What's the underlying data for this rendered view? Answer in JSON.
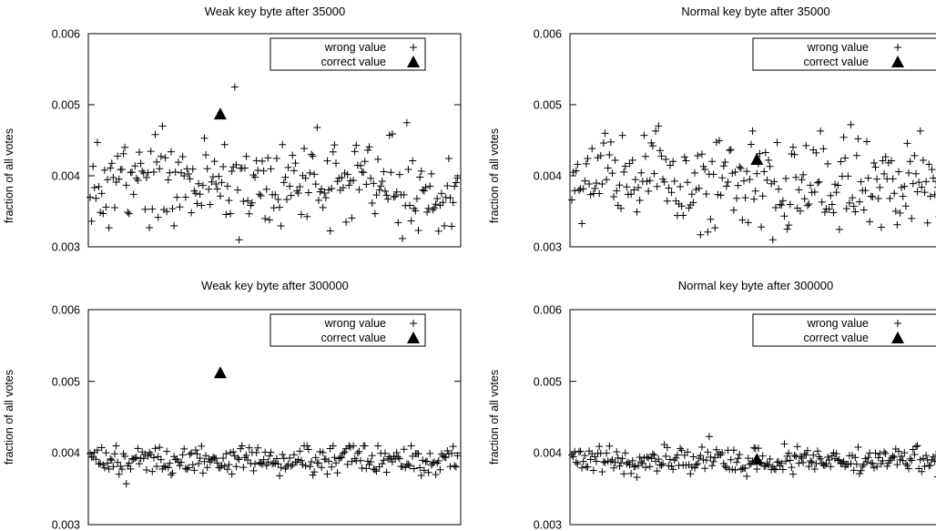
{
  "chart_data": [
    {
      "type": "scatter",
      "title": "Weak key byte after 35000",
      "xlabel": "",
      "ylabel": "fraction of all votes",
      "ylim": [
        0.003,
        0.006
      ],
      "yticks": [
        "0.003",
        "0.004",
        "0.005",
        "0.006"
      ],
      "xlim": [
        0,
        255
      ],
      "legend": {
        "position": "top-right",
        "entries": [
          "wrong value",
          "correct value"
        ]
      },
      "series": [
        {
          "name": "wrong value",
          "marker": "plus",
          "stats": {
            "n": 255,
            "mean": 0.00388,
            "sd": 0.00032,
            "min": 0.0031,
            "max": 0.00525,
            "seed": 1
          },
          "outliers": [
            [
              100,
              0.00525
            ],
            [
              157,
              0.00468
            ],
            [
              50,
              0.0047
            ]
          ]
        },
        {
          "name": "correct value",
          "marker": "triangle",
          "points": [
            [
              90,
              0.00487
            ]
          ]
        }
      ]
    },
    {
      "type": "scatter",
      "title": "Normal key byte after 35000",
      "xlabel": "",
      "ylabel": "fraction of all votes",
      "ylim": [
        0.003,
        0.006
      ],
      "yticks": [
        "0.003",
        "0.004",
        "0.005",
        "0.006"
      ],
      "xlim": [
        0,
        255
      ],
      "legend": {
        "position": "top-right",
        "entries": [
          "wrong value",
          "correct value"
        ]
      },
      "series": [
        {
          "name": "wrong value",
          "marker": "plus",
          "stats": {
            "n": 255,
            "mean": 0.00392,
            "sd": 0.00032,
            "min": 0.0031,
            "max": 0.00473,
            "seed": 2
          },
          "outliers": [
            [
              60,
              0.0047
            ],
            [
              193,
              0.00472
            ]
          ]
        },
        {
          "name": "correct value",
          "marker": "triangle",
          "points": [
            [
              128,
              0.00423
            ]
          ]
        }
      ]
    },
    {
      "type": "scatter",
      "title": "Weak key byte after 300000",
      "xlabel": "",
      "ylabel": "fraction of all votes",
      "ylim": [
        0.003,
        0.006
      ],
      "yticks": [
        "0.003",
        "0.004",
        "0.005",
        "0.006"
      ],
      "xlim": [
        0,
        255
      ],
      "legend": {
        "position": "top-right",
        "entries": [
          "wrong value",
          "correct value"
        ]
      },
      "series": [
        {
          "name": "wrong value",
          "marker": "plus",
          "stats": {
            "n": 255,
            "mean": 0.0039,
            "sd": 0.0001,
            "min": 0.00355,
            "max": 0.0042,
            "seed": 3
          },
          "outliers": [
            [
              25,
              0.00357
            ]
          ]
        },
        {
          "name": "correct value",
          "marker": "triangle",
          "points": [
            [
              90,
              0.00512
            ]
          ]
        }
      ]
    },
    {
      "type": "scatter",
      "title": "Normal key byte after 300000",
      "xlabel": "",
      "ylabel": "fraction of all votes",
      "ylim": [
        0.003,
        0.006
      ],
      "yticks": [
        "0.003",
        "0.004",
        "0.005",
        "0.006"
      ],
      "xlim": [
        0,
        255
      ],
      "legend": {
        "position": "top-right",
        "entries": [
          "wrong value",
          "correct value"
        ]
      },
      "series": [
        {
          "name": "wrong value",
          "marker": "plus",
          "stats": {
            "n": 255,
            "mean": 0.0039,
            "sd": 0.0001,
            "min": 0.0036,
            "max": 0.00423,
            "seed": 4
          },
          "outliers": [
            [
              95,
              0.00423
            ]
          ]
        },
        {
          "name": "correct value",
          "marker": "triangle",
          "points": [
            [
              128,
              0.00391
            ]
          ]
        }
      ]
    }
  ]
}
